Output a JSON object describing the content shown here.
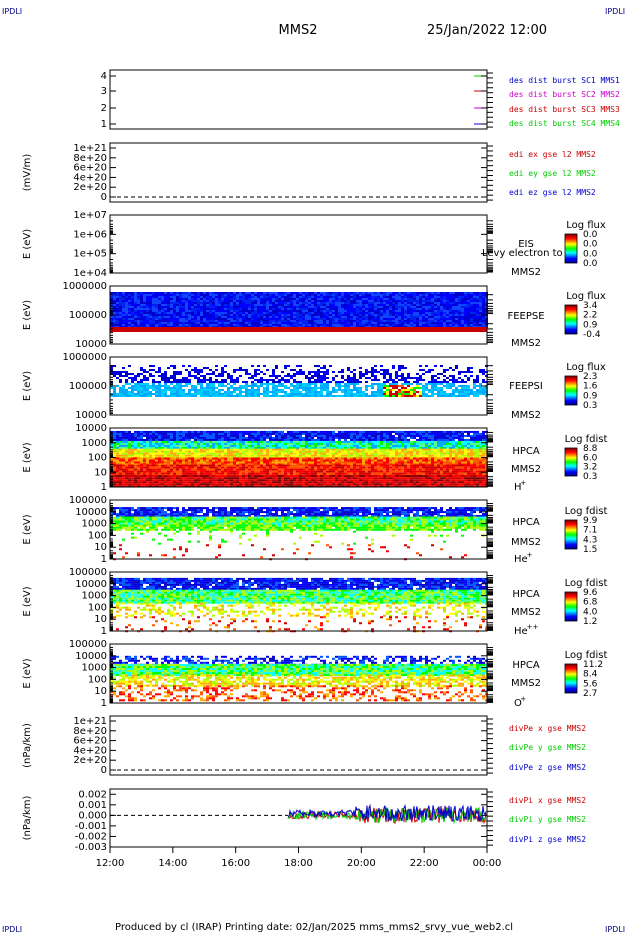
{
  "header": {
    "corner_tag": "IPDLI",
    "mission": "MMS2",
    "datetime": "25/Jan/2022 12:00"
  },
  "footer": {
    "text": "Produced by cl (IRAP)   Printing date: 02/Jan/2025   mms_mms2_srvy_vue_web2.cl"
  },
  "colors": {
    "red": "#cc0000",
    "green": "#00cc00",
    "blue": "#0000cc",
    "magenta": "#cc00cc",
    "label_blue": "#000088"
  },
  "time_axis": {
    "ticks": [
      "12:00",
      "14:00",
      "16:00",
      "18:00",
      "20:00",
      "22:00",
      "00:00"
    ]
  },
  "chart_data": [
    {
      "type": "line",
      "id": "panel1",
      "yticks": [
        "4",
        "3",
        "2",
        "1"
      ],
      "legend": [
        {
          "label": "des dist burst SC1 MMS1",
          "color": "#0000cc"
        },
        {
          "label": "des dist burst SC2 MMS2",
          "color": "#cc00cc"
        },
        {
          "label": "des dist burst SC3 MMS3",
          "color": "#cc0000"
        },
        {
          "label": "des dist burst SC4 MMS4",
          "color": "#00cc00"
        }
      ]
    },
    {
      "type": "line",
      "id": "panel2",
      "ylabel": "(mV/m)",
      "yticks": [
        "1e+21",
        "8e+20",
        "6e+20",
        "4e+20",
        "2e+20",
        "0"
      ],
      "legend": [
        {
          "label": "edi ex gse l2 MMS2",
          "color": "#cc0000"
        },
        {
          "label": "edi ey gse l2 MMS2",
          "color": "#00cc00"
        },
        {
          "label": "edi ez gse l2 MMS2",
          "color": "#0000cc"
        }
      ]
    },
    {
      "type": "heatmap",
      "id": "panel3",
      "ylabel": "E (eV)",
      "yticks": [
        "1e+07",
        "1e+06",
        "1e+05",
        "1e+04"
      ],
      "side_labels": [
        "EIS",
        "MMS2"
      ],
      "overlay_text": "Levy electron to",
      "cbar_title": "Log flux",
      "cbar_values": [
        "0.0",
        "0.0",
        "0.0",
        "0.0"
      ]
    },
    {
      "type": "heatmap",
      "id": "panel4",
      "ylabel": "E (eV)",
      "yticks": [
        "1000000",
        "100000",
        "10000"
      ],
      "side_labels": [
        "FEEPSE",
        "MMS2"
      ],
      "cbar_title": "Log flux",
      "cbar_values": [
        "3.4",
        "2.2",
        "0.9",
        "-0.4"
      ]
    },
    {
      "type": "heatmap",
      "id": "panel5",
      "ylabel": "E (eV)",
      "yticks": [
        "1000000",
        "100000",
        "10000"
      ],
      "side_labels": [
        "FEEPSI",
        "MMS2"
      ],
      "cbar_title": "Log flux",
      "cbar_values": [
        "2.3",
        "1.6",
        "0.9",
        "0.3"
      ]
    },
    {
      "type": "heatmap",
      "id": "panel6",
      "ylabel": "E (eV)",
      "yticks": [
        "10000",
        "1000",
        "100",
        "10",
        "1"
      ],
      "side_labels": [
        "HPCA",
        "MMS2"
      ],
      "species": "H",
      "species_sup": "+",
      "cbar_title": "Log fdist",
      "cbar_values": [
        "8.8",
        "6.0",
        "3.2",
        "0.3"
      ]
    },
    {
      "type": "heatmap",
      "id": "panel7",
      "ylabel": "E (eV)",
      "yticks": [
        "100000",
        "10000",
        "1000",
        "100",
        "10",
        "1"
      ],
      "side_labels": [
        "HPCA",
        "MMS2"
      ],
      "species": "He",
      "species_sup": "+",
      "cbar_title": "Log fdist",
      "cbar_values": [
        "9.9",
        "7.1",
        "4.3",
        "1.5"
      ]
    },
    {
      "type": "heatmap",
      "id": "panel8",
      "ylabel": "E (eV)",
      "yticks": [
        "100000",
        "10000",
        "1000",
        "100",
        "10",
        "1"
      ],
      "side_labels": [
        "HPCA",
        "MMS2"
      ],
      "species": "He",
      "species_sup": "++",
      "cbar_title": "Log fdist",
      "cbar_values": [
        "9.6",
        "6.8",
        "4.0",
        "1.2"
      ]
    },
    {
      "type": "heatmap",
      "id": "panel9",
      "ylabel": "E (eV)",
      "yticks": [
        "100000",
        "10000",
        "1000",
        "100",
        "10",
        "1"
      ],
      "side_labels": [
        "HPCA",
        "MMS2"
      ],
      "species": "O",
      "species_sup": "+",
      "cbar_title": "Log fdist",
      "cbar_values": [
        "11.2",
        "8.4",
        "5.6",
        "2.7"
      ]
    },
    {
      "type": "line",
      "id": "panel10",
      "ylabel": "(nPa/km)",
      "yticks": [
        "1e+21",
        "8e+20",
        "6e+20",
        "4e+20",
        "2e+20",
        "0"
      ],
      "legend": [
        {
          "label": "divPe x gse MMS2",
          "color": "#cc0000"
        },
        {
          "label": "divPe y gse MMS2",
          "color": "#00cc00"
        },
        {
          "label": "divPe z gse MMS2",
          "color": "#0000cc"
        }
      ]
    },
    {
      "type": "line",
      "id": "panel11",
      "ylabel": "(nPa/km)",
      "yticks": [
        "0.002",
        "0.001",
        "0.000",
        "-0.001",
        "-0.002",
        "-0.003"
      ],
      "ylim": [
        -0.003,
        0.0025
      ],
      "data_start_time": "17:40",
      "legend": [
        {
          "label": "divPi x gse MMS2",
          "color": "#cc0000"
        },
        {
          "label": "divPi y gse MMS2",
          "color": "#00cc00"
        },
        {
          "label": "divPi z gse MMS2",
          "color": "#0000cc"
        }
      ]
    }
  ]
}
